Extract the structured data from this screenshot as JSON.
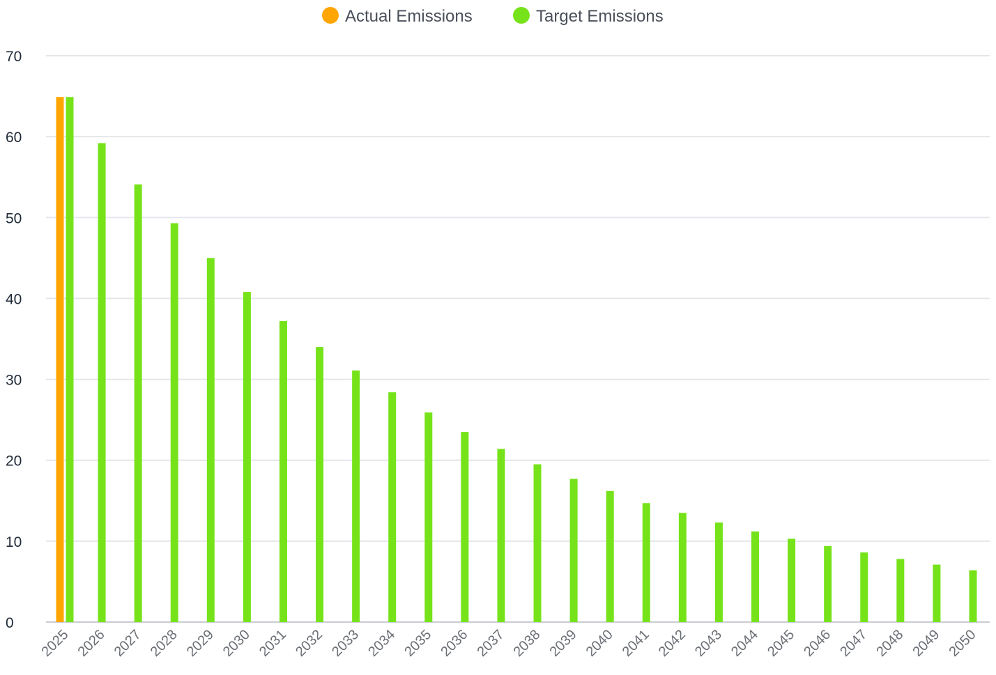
{
  "chart_data": {
    "type": "bar",
    "title": "",
    "xlabel": "",
    "ylabel": "",
    "ylim": [
      0,
      70
    ],
    "y_ticks": [
      0,
      10,
      20,
      30,
      40,
      50,
      60,
      70
    ],
    "grid": true,
    "legend_position": "top-center",
    "categories": [
      "2025",
      "2026",
      "2027",
      "2028",
      "2029",
      "2030",
      "2031",
      "2032",
      "2033",
      "2034",
      "2035",
      "2036",
      "2037",
      "2038",
      "2039",
      "2040",
      "2041",
      "2042",
      "2043",
      "2044",
      "2045",
      "2046",
      "2047",
      "2048",
      "2049",
      "2050"
    ],
    "series": [
      {
        "name": "Actual Emissions",
        "color": "#FFA500",
        "values": [
          64.9,
          null,
          null,
          null,
          null,
          null,
          null,
          null,
          null,
          null,
          null,
          null,
          null,
          null,
          null,
          null,
          null,
          null,
          null,
          null,
          null,
          null,
          null,
          null,
          null,
          null
        ]
      },
      {
        "name": "Target Emissions",
        "color": "#76E31A",
        "values": [
          64.9,
          59.2,
          54.1,
          49.3,
          45.0,
          40.8,
          37.2,
          34.0,
          31.1,
          28.4,
          25.9,
          23.5,
          21.4,
          19.5,
          17.7,
          16.2,
          14.7,
          13.5,
          12.3,
          11.2,
          10.3,
          9.4,
          8.6,
          7.8,
          7.1,
          6.4
        ]
      }
    ]
  }
}
